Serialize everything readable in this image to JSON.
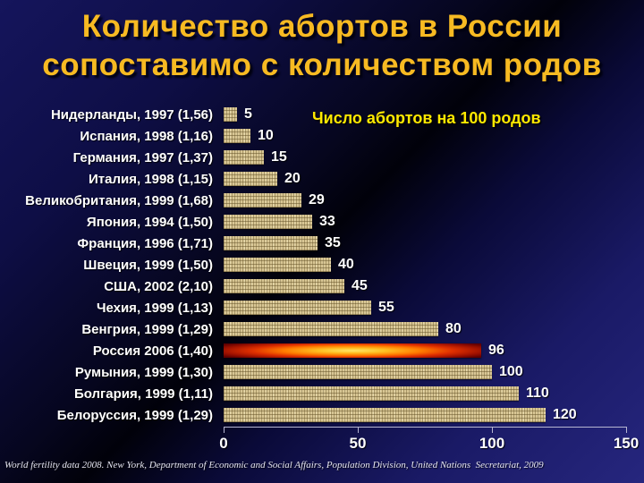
{
  "slide": {
    "title_lines": [
      "Количество абортов в России",
      "сопоставимо с количеством родов"
    ],
    "footer": "World fertility data 2008. New York, Department of Economic and Social Affairs, Population Division, United Nations  Secretariat, 2009"
  },
  "colors": {
    "title": "#f7ba22",
    "annotation": "#ffe900",
    "label_text": "#ffffff",
    "bar_fill": "#d8c694",
    "bar_texture": "#604e24",
    "highlight_bar_center": "#ffe76a",
    "highlight_bar_edge": "#600000",
    "axis": "#b6b6d2",
    "background_dark_band": "#01010a",
    "background_corner": "#26267e"
  },
  "chart_data": {
    "type": "bar",
    "orientation": "horizontal",
    "title": "Число абортов на 100 родов",
    "xlabel": "",
    "ylabel": "",
    "xlim": [
      0,
      150
    ],
    "x_ticks": [
      0,
      50,
      100,
      150
    ],
    "grid": false,
    "legend": false,
    "highlight_index": 11,
    "highlight_category": "Россия 2006 (1,40)",
    "categories": [
      "Нидерланды, 1997 (1,56)",
      "Испания, 1998 (1,16)",
      "Германия, 1997 (1,37)",
      "Италия, 1998 (1,15)",
      "Великобритания, 1999 (1,68)",
      "Япония, 1994 (1,50)",
      "Франция, 1996 (1,71)",
      "Швеция, 1999 (1,50)",
      "США, 2002 (2,10)",
      "Чехия, 1999 (1,13)",
      "Венгрия, 1999 (1,29)",
      "Россия 2006 (1,40)",
      "Румыния, 1999 (1,30)",
      "Болгария, 1999 (1,11)",
      "Белоруссия, 1999 (1,29)"
    ],
    "values": [
      5,
      10,
      15,
      20,
      29,
      33,
      35,
      40,
      45,
      55,
      80,
      96,
      100,
      110,
      120
    ]
  }
}
